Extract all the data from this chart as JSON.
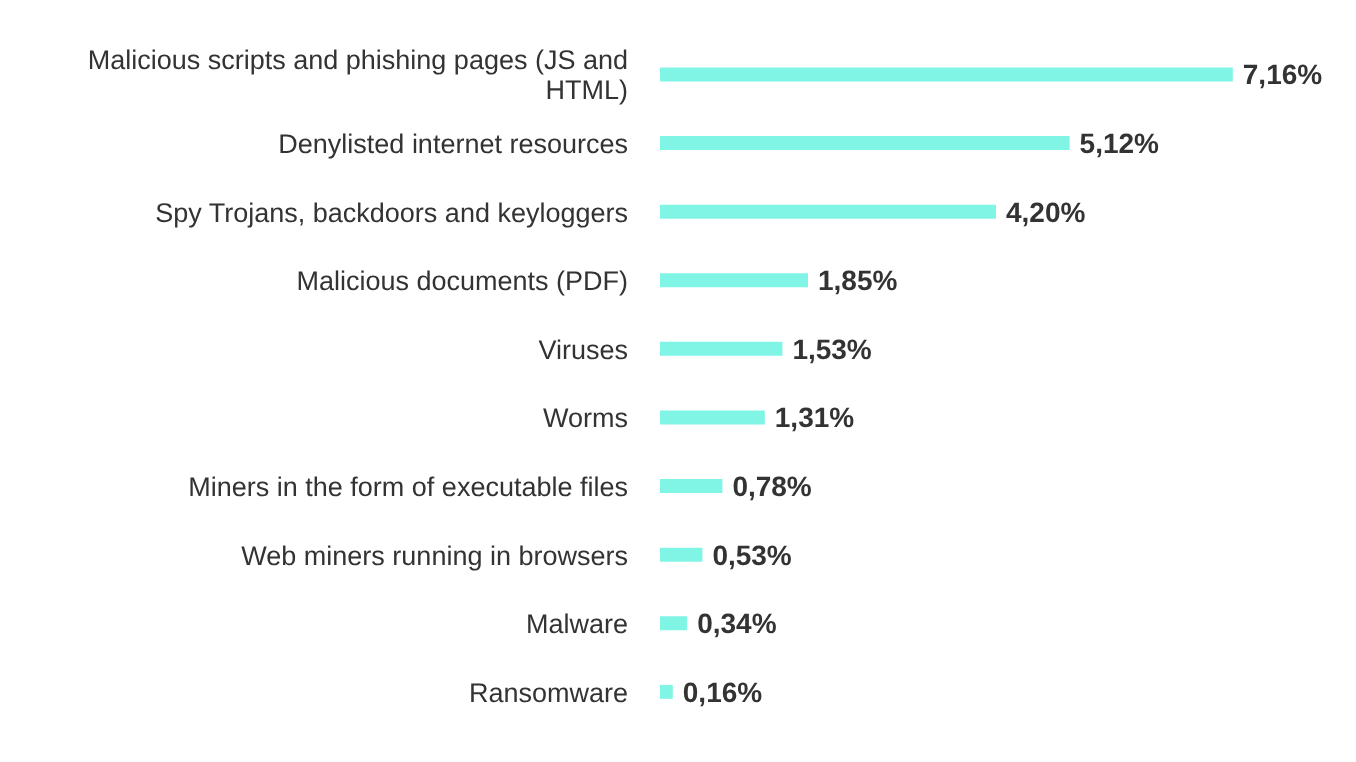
{
  "chart_data": {
    "type": "bar",
    "orientation": "horizontal",
    "categories": [
      "Malicious scripts and phishing pages (JS and HTML)",
      "Denylisted internet resources",
      "Spy Trojans, backdoors and keyloggers",
      "Malicious documents (PDF)",
      "Viruses",
      "Worms",
      "Miners in the form of executable files",
      "Web miners running in browsers",
      "Malware",
      "Ransomware"
    ],
    "values": [
      7.16,
      5.12,
      4.2,
      1.85,
      1.53,
      1.31,
      0.78,
      0.53,
      0.34,
      0.16
    ],
    "value_labels": [
      "7,16%",
      "5,12%",
      "4,20%",
      "1,85%",
      "1,53%",
      "1,31%",
      "0,78%",
      "0,53%",
      "0,34%",
      "0,16%"
    ],
    "color": "#80f5e6",
    "tick_labels": "y"
  }
}
